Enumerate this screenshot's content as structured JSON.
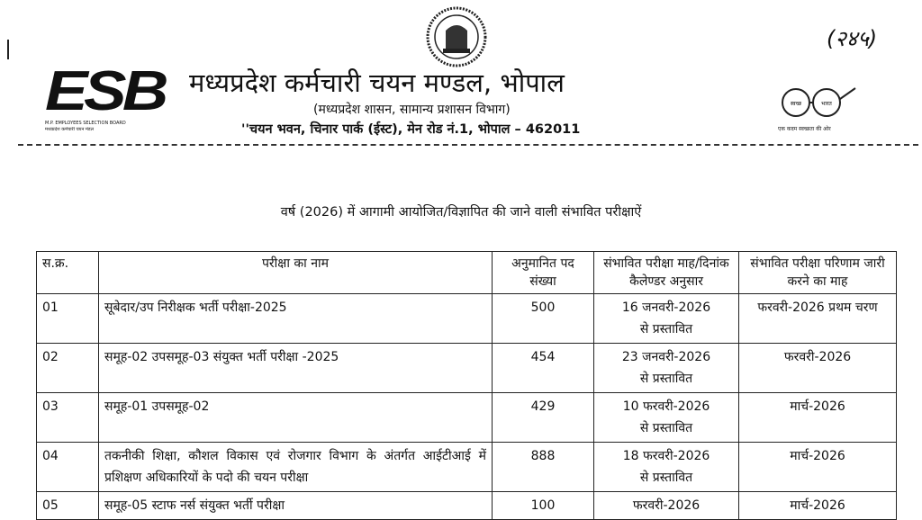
{
  "header": {
    "logo_left": {
      "text": "ESB",
      "sub": "M.P. EMPLOYEES SELECTION BOARD",
      "sub_hindi": "मध्यप्रदेश कर्मचारी चयन मंडल"
    },
    "title": "मध्यप्रदेश कर्मचारी चयन मण्डल, भोपाल",
    "subtitle": "(मध्यप्रदेश शासन, सामान्य प्रशासन विभाग)",
    "address": "''चयन भवन, चिनार पार्क (ईस्ट), मेन रोड नं.1, भोपाल – 462011",
    "handwritten_number": "(२४५)",
    "right_logo": {
      "left": "स्वच्छ",
      "right": "भारत",
      "tagline": "एक कदम स्वच्छता की ओर"
    }
  },
  "heading": "वर्ष (2026) में आगामी आयोजित/विज्ञापित  की जाने वाली संभावित परीक्षाऐं",
  "table": {
    "columns": [
      "स.क्र.",
      "परीक्षा का नाम",
      "अनुमानित पद संख्या",
      "संभावित परीक्षा माह/दिनांक कैलेण्डर अनुसार",
      "संभावित परीक्षा परिणाम जारी करने का माह"
    ],
    "rows": [
      {
        "sno": "01",
        "name": "सूबेदार/उप निरीक्षक भर्ती परीक्षा-2025",
        "posts": "500",
        "exam_date": "16 जनवरी-2026 से प्रस्तावित",
        "result": "फरवरी-2026 प्रथम चरण"
      },
      {
        "sno": "02",
        "name": "समूह-02 उपसमूह-03 संयुक्त भर्ती परीक्षा -2025",
        "posts": "454",
        "exam_date": "23 जनवरी-2026 से प्रस्तावित",
        "result": "फरवरी-2026"
      },
      {
        "sno": "03",
        "name": "समूह-01 उपसमूह-02",
        "posts": "429",
        "exam_date": "10 फरवरी-2026 से प्रस्तावित",
        "result": "मार्च-2026"
      },
      {
        "sno": "04",
        "name": "तकनीकी शिक्षा, कौशल विकास एवं रोजगार विभाग के अंतर्गत आईटीआई में प्रशिक्षण अधिकारियों के पदो की चयन परीक्षा",
        "posts": "888",
        "exam_date": "18 फरवरी-2026 से प्रस्तावित",
        "result": "मार्च-2026"
      },
      {
        "sno": "05",
        "name": "समूह-05 स्टाफ नर्स संयुक्त भर्ती परीक्षा",
        "posts": "100",
        "exam_date": "फरवरी-2026",
        "result": "मार्च-2026"
      }
    ]
  }
}
